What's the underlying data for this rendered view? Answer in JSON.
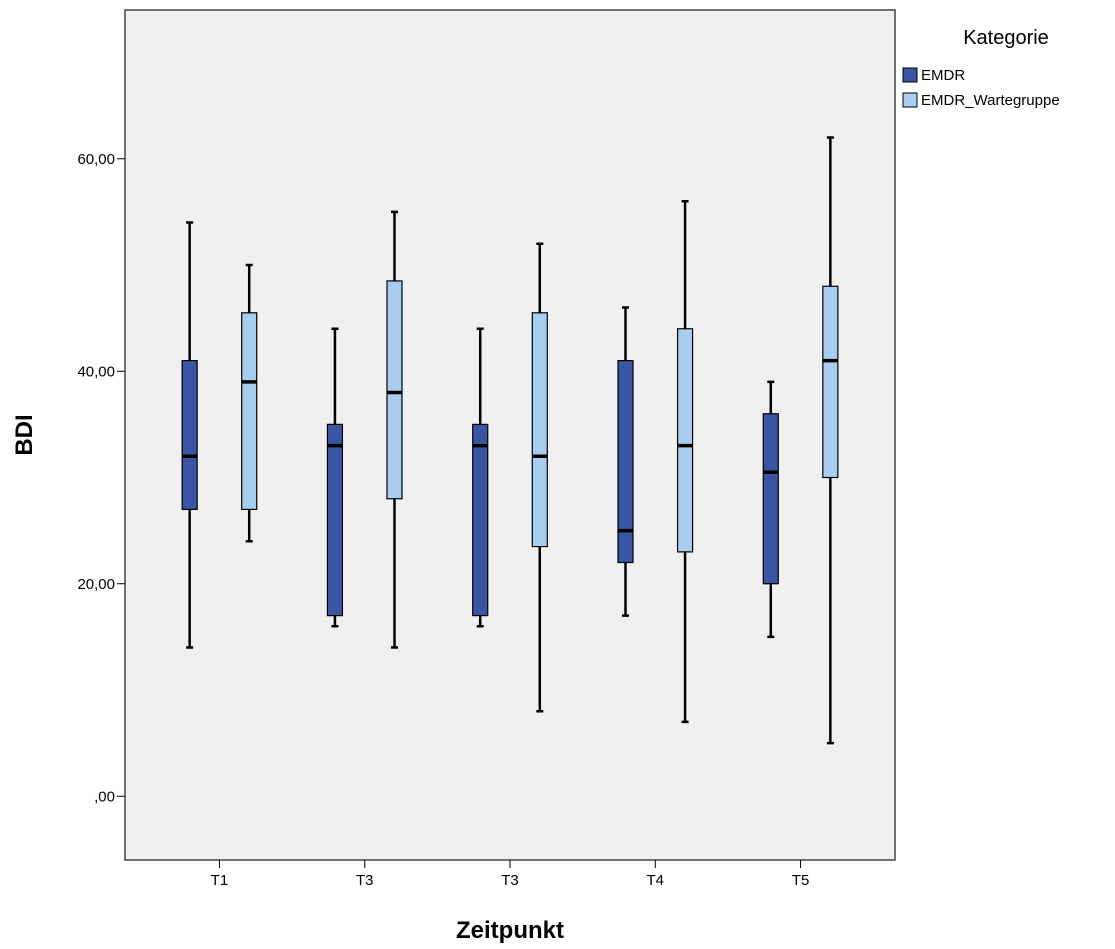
{
  "chart_data": {
    "type": "boxplot",
    "xlabel": "Zeitpunkt",
    "ylabel": "BDI",
    "categories": [
      "T1",
      "T3",
      "T3",
      "T4",
      "T5"
    ],
    "ylim": [
      -6,
      74
    ],
    "yticks": [
      {
        "value": 0,
        "label": ",00"
      },
      {
        "value": 20,
        "label": "20,00"
      },
      {
        "value": 40,
        "label": "40,00"
      },
      {
        "value": 60,
        "label": "60,00"
      }
    ],
    "grid": false,
    "legend": {
      "title": "Kategorie",
      "position": "top-right"
    },
    "series": [
      {
        "name": "EMDR",
        "color": "#3a55a4",
        "boxes": [
          {
            "min": 14,
            "q1": 27,
            "median": 32,
            "q3": 41,
            "max": 54
          },
          {
            "min": 16,
            "q1": 17,
            "median": 33,
            "q3": 35,
            "max": 44
          },
          {
            "min": 16,
            "q1": 17,
            "median": 33,
            "q3": 35,
            "max": 44
          },
          {
            "min": 17,
            "q1": 22,
            "median": 25,
            "q3": 41,
            "max": 46
          },
          {
            "min": 15,
            "q1": 20,
            "median": 30.5,
            "q3": 36,
            "max": 39
          }
        ]
      },
      {
        "name": "EMDR_Wartegruppe",
        "color": "#a9cdee",
        "boxes": [
          {
            "min": 24,
            "q1": 27,
            "median": 39,
            "q3": 45.5,
            "max": 50
          },
          {
            "min": 14,
            "q1": 28,
            "median": 38,
            "q3": 48.5,
            "max": 55
          },
          {
            "min": 8,
            "q1": 23.5,
            "median": 32,
            "q3": 45.5,
            "max": 52
          },
          {
            "min": 7,
            "q1": 23,
            "median": 33,
            "q3": 44,
            "max": 56
          },
          {
            "min": 5,
            "q1": 30,
            "median": 41,
            "q3": 48,
            "max": 62
          }
        ]
      }
    ]
  }
}
